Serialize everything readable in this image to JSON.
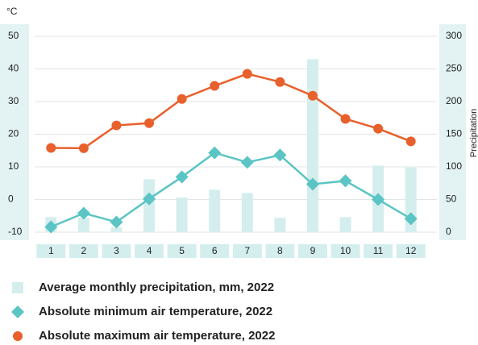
{
  "chart_data": {
    "type": "bar-line",
    "y_label": "°C",
    "y2_label": "Precipitation",
    "categories": [
      "1",
      "2",
      "3",
      "4",
      "5",
      "6",
      "7",
      "8",
      "9",
      "10",
      "11",
      "12"
    ],
    "series": [
      {
        "name": "Average monthly precipitation, mm, 2022",
        "type": "bar",
        "axis": "y2",
        "color": "#d4eeee",
        "values": [
          23,
          22,
          7,
          81,
          53,
          65,
          60,
          22,
          265,
          23,
          102,
          99
        ]
      },
      {
        "name": "Absolute minimum air temperature, 2022",
        "type": "line",
        "marker": "diamond",
        "color": "#5bc4c4",
        "values": [
          -8.4,
          -4.2,
          -6.9,
          0.2,
          6.9,
          14.3,
          11.4,
          13.6,
          4.7,
          5.7,
          0,
          -5.9
        ]
      },
      {
        "name": "Absolute maximum air temperature, 2022",
        "type": "line",
        "marker": "circle",
        "color": "#e8602c",
        "values": [
          15.8,
          15.7,
          22.7,
          23.4,
          30.8,
          34.8,
          38.5,
          36,
          31.8,
          24.7,
          21.7,
          17.8
        ]
      }
    ],
    "ylim": [
      -10,
      50
    ],
    "yticks": [
      -10,
      0,
      10,
      20,
      30,
      40,
      50
    ],
    "y2lim": [
      0,
      300
    ],
    "y2ticks": [
      0,
      50,
      100,
      150,
      200,
      250,
      300
    ],
    "grid": true
  }
}
